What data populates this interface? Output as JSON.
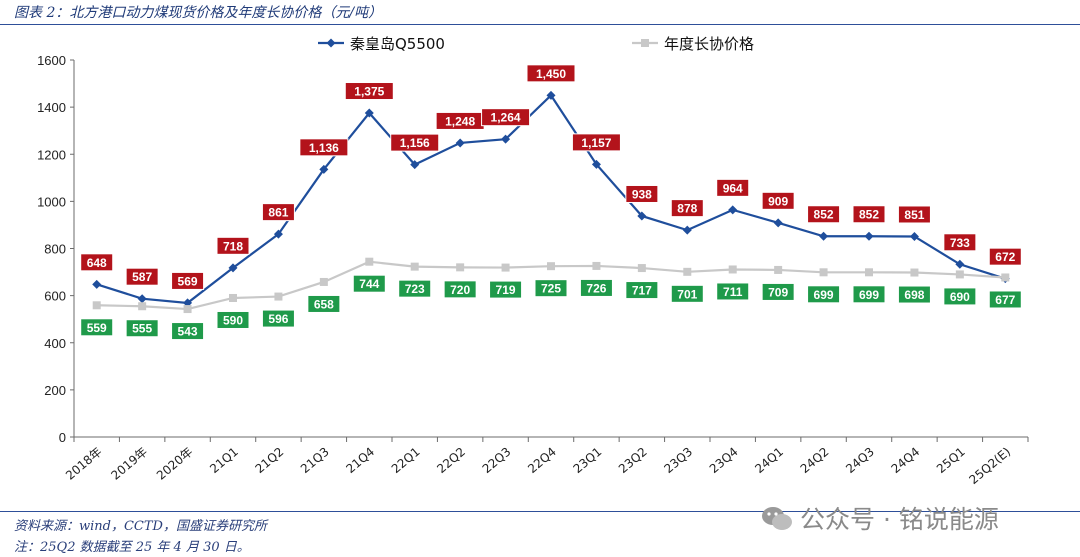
{
  "header": {
    "title": "图表 2：北方港口动力煤现货价格及年度长协价格（元/吨）"
  },
  "footer": {
    "source": "资料来源：wind，CCTD，国盛证券研究所",
    "note": "注：25Q2 数据截至 25 年 4 月 30 日。"
  },
  "watermark": {
    "text": "公众号 · 铭说能源",
    "icon": "wechat-icon"
  },
  "colors": {
    "spot": "#1f4e9c",
    "contract": "#c8c8c8",
    "spot_label_bg": "#b3131b",
    "contract_label_bg": "#1f9a4a"
  },
  "chart_data": {
    "type": "line",
    "categories": [
      "2018年",
      "2019年",
      "2020年",
      "21Q1",
      "21Q2",
      "21Q3",
      "21Q4",
      "22Q1",
      "22Q2",
      "22Q3",
      "22Q4",
      "23Q1",
      "23Q2",
      "23Q3",
      "23Q4",
      "24Q1",
      "24Q2",
      "24Q3",
      "24Q4",
      "25Q1",
      "25Q2(E)"
    ],
    "series": [
      {
        "name": "秦皇岛Q5500",
        "values": [
          648,
          587,
          569,
          718,
          861,
          1136,
          1375,
          1156,
          1248,
          1264,
          1450,
          1157,
          938,
          878,
          964,
          909,
          852,
          852,
          851,
          733,
          672
        ],
        "labels": [
          "648",
          "587",
          "569",
          "718",
          "861",
          "1,136",
          "1,375",
          "1,156",
          "1,248",
          "1,264",
          "1,450",
          "1,157",
          "938",
          "878",
          "964",
          "909",
          "852",
          "852",
          "851",
          "733",
          "672"
        ]
      },
      {
        "name": "年度长协价格",
        "values": [
          559,
          555,
          543,
          590,
          596,
          658,
          744,
          723,
          720,
          719,
          725,
          726,
          717,
          701,
          711,
          709,
          699,
          699,
          698,
          690,
          677
        ],
        "labels": [
          "559",
          "555",
          "543",
          "590",
          "596",
          "658",
          "744",
          "723",
          "720",
          "719",
          "725",
          "726",
          "717",
          "701",
          "711",
          "709",
          "699",
          "699",
          "698",
          "690",
          "677"
        ]
      }
    ],
    "ylim": [
      0,
      1600
    ],
    "yticks": [
      "0",
      "200",
      "400",
      "600",
      "800",
      "1000",
      "1200",
      "1400",
      "1600"
    ],
    "grid": false,
    "legend": "top"
  }
}
